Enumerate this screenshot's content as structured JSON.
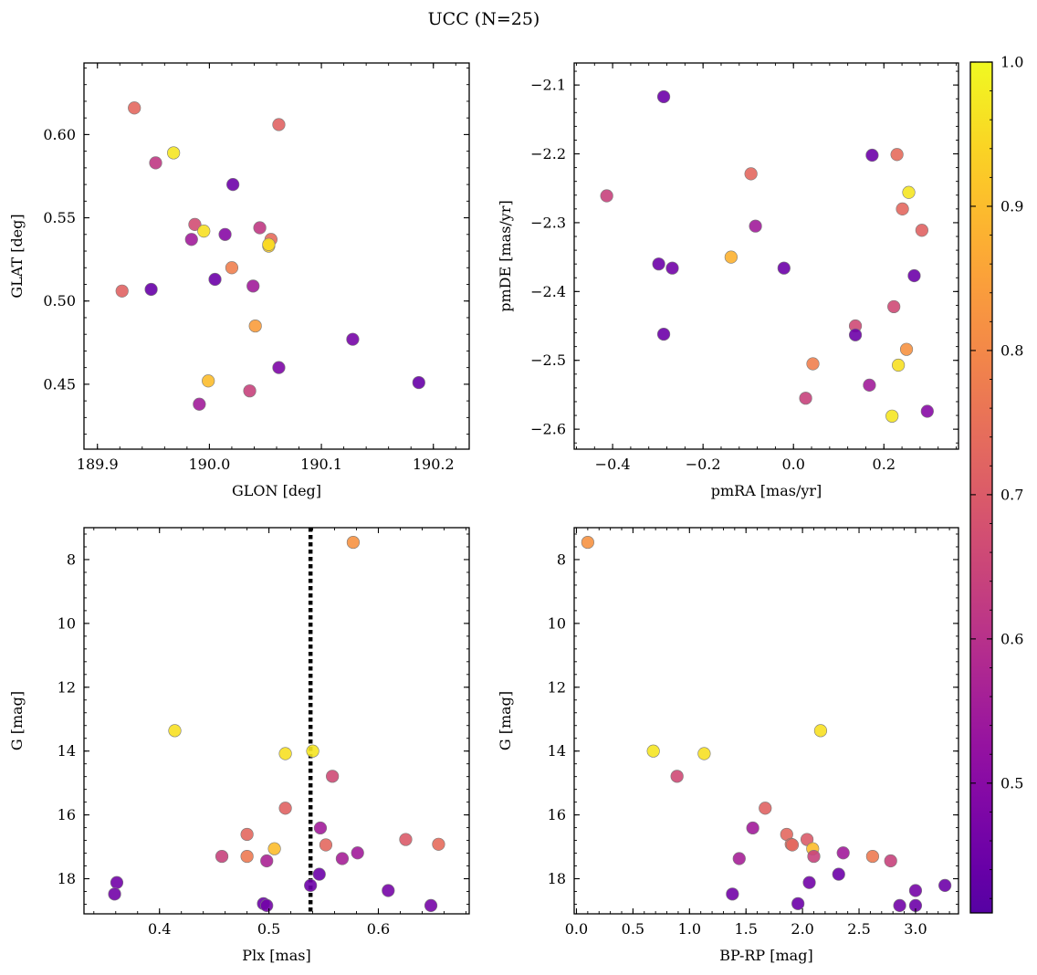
{
  "title": "UCC (N=25)",
  "colorbar": {
    "colormap": "plasma",
    "range": [
      0.41,
      1.0
    ],
    "ticks": [
      0.5,
      0.6,
      0.7,
      0.8,
      0.9,
      1.0
    ],
    "tick_labels": [
      "0.5",
      "0.6",
      "0.7",
      "0.8",
      "0.9",
      "1.0"
    ]
  },
  "chart_data": [
    {
      "type": "scatter",
      "id": "glon-glat",
      "xlabel": "GLON [deg]",
      "ylabel": "GLAT [deg]",
      "xlim": [
        189.888,
        190.232
      ],
      "ylim": [
        0.411,
        0.643
      ],
      "xticks": [
        189.9,
        190.0,
        190.1,
        190.2
      ],
      "xtick_labels": [
        "189.9",
        "190.0",
        "190.1",
        "190.2"
      ],
      "yticks": [
        0.45,
        0.5,
        0.55,
        0.6
      ],
      "ytick_labels": [
        "0.45",
        "0.50",
        "0.55",
        "0.60"
      ],
      "x": [
        189.933,
        189.968,
        190.062,
        189.952,
        190.021,
        189.987,
        189.995,
        190.045,
        190.014,
        189.984,
        190.055,
        190.053,
        190.02,
        189.922,
        190.005,
        189.948,
        190.039,
        190.041,
        190.128,
        190.187,
        190.062,
        189.999,
        190.036,
        189.991,
        190.053
      ],
      "y": [
        0.616,
        0.589,
        0.606,
        0.583,
        0.57,
        0.546,
        0.542,
        0.544,
        0.54,
        0.537,
        0.537,
        0.533,
        0.52,
        0.506,
        0.513,
        0.507,
        0.509,
        0.485,
        0.477,
        0.451,
        0.46,
        0.452,
        0.446,
        0.438,
        0.534
      ],
      "c": [
        0.73,
        0.97,
        0.72,
        0.62,
        0.45,
        0.67,
        0.96,
        0.62,
        0.5,
        0.55,
        0.74,
        0.93,
        0.78,
        0.72,
        0.45,
        0.44,
        0.55,
        0.84,
        0.47,
        0.44,
        0.48,
        0.9,
        0.64,
        0.55,
        0.95
      ]
    },
    {
      "type": "scatter",
      "id": "pm",
      "xlabel": "pmRA [mas/yr]",
      "ylabel": "pmDE [mas/yr]",
      "xlim": [
        -0.485,
        0.365
      ],
      "ylim": [
        -2.629,
        -2.068
      ],
      "xticks": [
        -0.4,
        -0.2,
        0.0,
        0.2
      ],
      "xtick_labels": [
        "−0.4",
        "−0.2",
        "0.0",
        "0.2"
      ],
      "yticks": [
        -2.6,
        -2.5,
        -2.4,
        -2.3,
        -2.2,
        -2.1
      ],
      "ytick_labels": [
        "−2.6",
        "−2.5",
        "−2.4",
        "−2.3",
        "−2.2",
        "−2.1"
      ],
      "x": [
        -0.287,
        0.174,
        0.229,
        0.255,
        -0.094,
        -0.413,
        0.241,
        0.284,
        -0.084,
        -0.298,
        -0.268,
        -0.138,
        -0.021,
        0.267,
        0.222,
        0.137,
        0.137,
        0.25,
        0.043,
        0.232,
        0.027,
        0.168,
        0.218,
        0.296,
        -0.287
      ],
      "y": [
        -2.117,
        -2.202,
        -2.201,
        -2.256,
        -2.229,
        -2.261,
        -2.28,
        -2.311,
        -2.305,
        -2.36,
        -2.366,
        -2.35,
        -2.366,
        -2.377,
        -2.422,
        -2.45,
        -2.463,
        -2.484,
        -2.505,
        -2.507,
        -2.555,
        -2.536,
        -2.581,
        -2.574,
        -2.462
      ],
      "c": [
        0.45,
        0.45,
        0.74,
        0.97,
        0.73,
        0.64,
        0.73,
        0.72,
        0.55,
        0.45,
        0.46,
        0.88,
        0.45,
        0.45,
        0.66,
        0.66,
        0.45,
        0.82,
        0.78,
        0.96,
        0.64,
        0.55,
        0.97,
        0.5,
        0.45
      ]
    },
    {
      "type": "scatter",
      "id": "plx-g",
      "xlabel": "Plx [mas]",
      "ylabel": "G [mag]",
      "xlim": [
        0.331,
        0.683
      ],
      "ylim": [
        19.1,
        7.0
      ],
      "y_inverted": true,
      "vline": 0.538,
      "xticks": [
        0.4,
        0.5,
        0.6
      ],
      "xtick_labels": [
        "0.4",
        "0.5",
        "0.6"
      ],
      "yticks": [
        8,
        10,
        12,
        14,
        16,
        18
      ],
      "ytick_labels": [
        "8",
        "10",
        "12",
        "14",
        "16",
        "18"
      ],
      "x": [
        0.577,
        0.414,
        0.515,
        0.54,
        0.558,
        0.515,
        0.48,
        0.547,
        0.505,
        0.625,
        0.655,
        0.552,
        0.457,
        0.48,
        0.498,
        0.567,
        0.581,
        0.361,
        0.359,
        0.546,
        0.538,
        0.609,
        0.495,
        0.498,
        0.648
      ],
      "y": [
        7.46,
        13.36,
        14.08,
        14.0,
        14.79,
        15.79,
        16.61,
        16.41,
        17.06,
        16.77,
        16.92,
        16.94,
        17.3,
        17.3,
        17.44,
        17.37,
        17.19,
        18.12,
        18.48,
        17.86,
        18.21,
        18.37,
        18.78,
        18.84,
        18.84
      ],
      "c": [
        0.82,
        0.96,
        0.96,
        0.97,
        0.66,
        0.72,
        0.73,
        0.55,
        0.9,
        0.7,
        0.74,
        0.73,
        0.64,
        0.77,
        0.57,
        0.56,
        0.55,
        0.46,
        0.46,
        0.45,
        0.45,
        0.47,
        0.45,
        0.46,
        0.47
      ]
    },
    {
      "type": "scatter",
      "id": "cmd",
      "xlabel": "BP-RP [mag]",
      "ylabel": "G [mag]",
      "xlim": [
        -0.02,
        3.38
      ],
      "ylim": [
        19.1,
        7.0
      ],
      "y_inverted": true,
      "xticks": [
        0.0,
        0.5,
        1.0,
        1.5,
        2.0,
        2.5,
        3.0
      ],
      "xtick_labels": [
        "0.0",
        "0.5",
        "1.0",
        "1.5",
        "2.0",
        "2.5",
        "3.0"
      ],
      "yticks": [
        8,
        10,
        12,
        14,
        16,
        18
      ],
      "ytick_labels": [
        "8",
        "10",
        "12",
        "14",
        "16",
        "18"
      ],
      "x": [
        0.1,
        0.68,
        1.13,
        2.16,
        0.89,
        1.67,
        1.56,
        1.86,
        2.04,
        2.09,
        1.9,
        1.91,
        2.36,
        2.1,
        2.62,
        2.78,
        1.44,
        2.06,
        2.32,
        1.38,
        1.96,
        3.0,
        3.26,
        2.86,
        3.0
      ],
      "y": [
        7.46,
        14.0,
        14.08,
        13.36,
        14.79,
        15.79,
        16.41,
        16.61,
        16.77,
        17.06,
        16.92,
        16.94,
        17.19,
        17.3,
        17.3,
        17.44,
        17.37,
        18.12,
        17.86,
        18.48,
        18.78,
        18.37,
        18.21,
        18.84,
        18.84
      ],
      "c": [
        0.82,
        0.97,
        0.96,
        0.96,
        0.66,
        0.72,
        0.55,
        0.73,
        0.7,
        0.9,
        0.74,
        0.73,
        0.55,
        0.64,
        0.77,
        0.64,
        0.56,
        0.46,
        0.45,
        0.46,
        0.45,
        0.47,
        0.45,
        0.46,
        0.45
      ]
    }
  ]
}
